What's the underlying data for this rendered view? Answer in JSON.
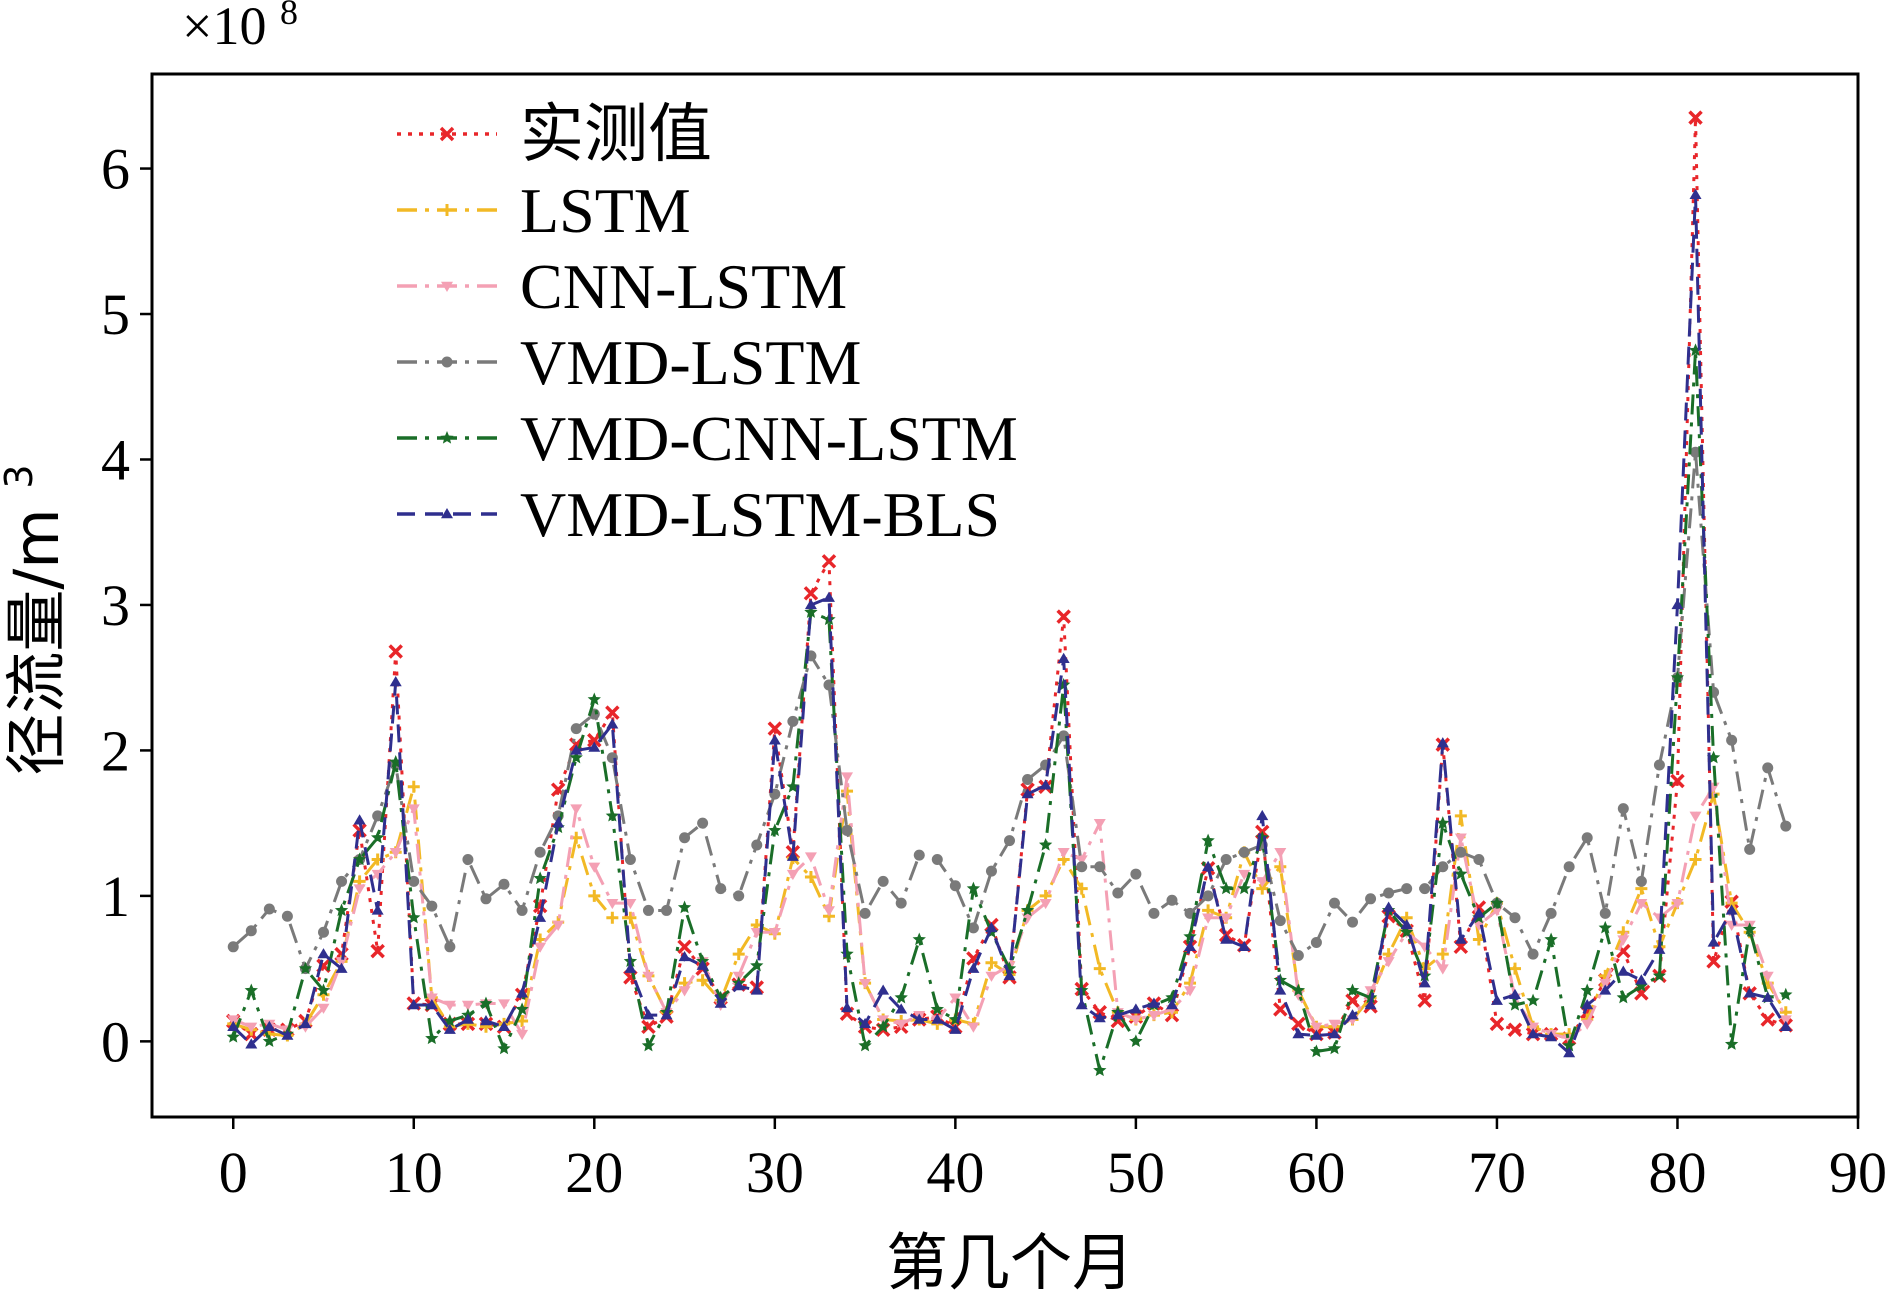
{
  "chart_data": {
    "type": "line",
    "xlabel": "第几个月",
    "ylabel_main": "径流量/m",
    "ylabel_sup": "3",
    "y_multiplier_base": "×10",
    "y_multiplier_exp": "8",
    "xlim": [
      -4.5,
      90
    ],
    "ylim": [
      -0.52,
      6.65
    ],
    "xticks": [
      0,
      10,
      20,
      30,
      40,
      50,
      60,
      70,
      80,
      90
    ],
    "xtick_labels": [
      "0",
      "10",
      "20",
      "30",
      "40",
      "50",
      "60",
      "70",
      "80",
      "90"
    ],
    "yticks": [
      0,
      1,
      2,
      3,
      4,
      5,
      6
    ],
    "ytick_labels": [
      "0",
      "1",
      "2",
      "3",
      "4",
      "5",
      "6"
    ],
    "grid": false,
    "legend_position": "top-left",
    "series": [
      {
        "name": "实测值",
        "color": "#e8262a",
        "dash": "4,7",
        "marker": "x",
        "values": [
          0.14,
          0.05,
          0.08,
          0.08,
          0.14,
          0.52,
          0.6,
          1.45,
          0.62,
          2.68,
          0.26,
          0.25,
          0.12,
          0.12,
          0.12,
          0.1,
          0.32,
          0.93,
          1.73,
          2.04,
          2.07,
          2.26,
          0.44,
          0.1,
          0.17,
          0.65,
          0.5,
          0.3,
          0.39,
          0.37,
          2.15,
          1.3,
          3.08,
          3.3,
          0.19,
          0.1,
          0.08,
          0.1,
          0.15,
          0.17,
          0.1,
          0.57,
          0.8,
          0.44,
          1.73,
          1.75,
          2.92,
          0.36,
          0.2,
          0.14,
          0.17,
          0.26,
          0.18,
          0.65,
          1.19,
          0.73,
          0.66,
          1.44,
          0.22,
          0.12,
          0.05,
          0.06,
          0.28,
          0.24,
          0.86,
          0.76,
          0.28,
          2.04,
          0.65,
          0.92,
          0.12,
          0.08,
          0.05,
          0.05,
          0.02,
          0.2,
          0.42,
          0.62,
          0.33,
          0.45,
          1.79,
          6.35,
          0.55,
          0.96,
          0.33,
          0.15,
          0.11
        ]
      },
      {
        "name": "LSTM",
        "color": "#f2b925",
        "dash": "20,8,4,8",
        "marker": "plus",
        "values": [
          0.12,
          0.08,
          0.05,
          0.04,
          0.12,
          0.32,
          0.55,
          1.1,
          1.25,
          1.3,
          1.75,
          0.3,
          0.1,
          0.12,
          0.1,
          0.12,
          0.14,
          0.7,
          0.82,
          1.4,
          1.0,
          0.85,
          0.85,
          0.45,
          0.2,
          0.4,
          0.42,
          0.28,
          0.6,
          0.8,
          0.74,
          1.26,
          1.13,
          0.86,
          1.72,
          0.4,
          0.15,
          0.14,
          0.15,
          0.12,
          0.15,
          0.12,
          0.54,
          0.46,
          0.9,
          1.0,
          1.25,
          1.05,
          0.5,
          0.2,
          0.15,
          0.18,
          0.2,
          0.4,
          0.9,
          0.85,
          1.3,
          1.05,
          1.2,
          0.35,
          0.1,
          0.1,
          0.15,
          0.3,
          0.6,
          0.85,
          0.5,
          0.6,
          1.55,
          0.7,
          0.95,
          0.5,
          0.1,
          0.05,
          0.05,
          0.15,
          0.45,
          0.75,
          1.05,
          0.65,
          0.95,
          1.25,
          1.7,
          0.95,
          0.75,
          0.4,
          0.2
        ]
      },
      {
        "name": "CNN-LSTM",
        "color": "#f4a0b4",
        "dash": "20,8,4,8",
        "marker": "tri-down",
        "values": [
          0.15,
          0.1,
          0.12,
          0.08,
          0.1,
          0.23,
          0.55,
          1.05,
          1.15,
          1.3,
          1.6,
          0.3,
          0.25,
          0.25,
          0.26,
          0.26,
          0.05,
          0.65,
          0.8,
          1.6,
          1.2,
          0.95,
          0.95,
          0.45,
          0.2,
          0.35,
          0.55,
          0.25,
          0.45,
          0.75,
          0.75,
          1.15,
          1.27,
          0.9,
          1.82,
          0.4,
          0.15,
          0.12,
          0.18,
          0.15,
          0.3,
          0.1,
          0.45,
          0.52,
          0.85,
          0.95,
          1.3,
          1.25,
          1.5,
          0.2,
          0.15,
          0.18,
          0.22,
          0.35,
          0.85,
          0.85,
          1.15,
          1.1,
          1.3,
          0.32,
          0.1,
          0.12,
          0.15,
          0.35,
          0.55,
          0.75,
          0.65,
          0.5,
          1.4,
          0.8,
          0.9,
          0.3,
          0.1,
          0.05,
          0.02,
          0.12,
          0.4,
          0.7,
          0.95,
          0.85,
          0.95,
          1.55,
          1.75,
          0.8,
          0.8,
          0.45,
          0.15
        ]
      },
      {
        "name": "VMD-LSTM",
        "color": "#7a7a7a",
        "dash": "20,8,4,8",
        "marker": "circle",
        "values": [
          0.65,
          0.76,
          0.91,
          0.86,
          0.5,
          0.75,
          1.1,
          1.25,
          1.55,
          1.9,
          1.1,
          0.93,
          0.65,
          1.25,
          0.98,
          1.08,
          0.9,
          1.3,
          1.55,
          2.15,
          2.25,
          1.95,
          1.25,
          0.9,
          0.9,
          1.4,
          1.5,
          1.05,
          1.0,
          1.35,
          1.7,
          2.2,
          2.65,
          2.45,
          1.45,
          0.88,
          1.1,
          0.95,
          1.28,
          1.25,
          1.07,
          0.78,
          1.17,
          1.38,
          1.8,
          1.9,
          2.1,
          1.2,
          1.2,
          1.02,
          1.15,
          0.88,
          0.97,
          0.88,
          1.0,
          1.25,
          1.3,
          1.35,
          0.83,
          0.59,
          0.68,
          0.95,
          0.82,
          0.98,
          1.02,
          1.05,
          1.05,
          1.2,
          1.3,
          1.25,
          0.95,
          0.85,
          0.6,
          0.88,
          1.2,
          1.4,
          0.88,
          1.6,
          1.1,
          1.9,
          2.5,
          4.05,
          2.4,
          2.07,
          1.32,
          1.88,
          1.48
        ]
      },
      {
        "name": "VMD-CNN-LSTM",
        "color": "#1a6e28",
        "dash": "20,8,4,8",
        "marker": "star",
        "values": [
          0.03,
          0.35,
          0.0,
          0.05,
          0.5,
          0.35,
          0.9,
          1.25,
          1.4,
          1.92,
          0.85,
          0.02,
          0.14,
          0.18,
          0.26,
          -0.05,
          0.22,
          1.12,
          1.47,
          1.95,
          2.35,
          1.55,
          0.55,
          -0.03,
          0.2,
          0.92,
          0.55,
          0.3,
          0.4,
          0.52,
          1.45,
          1.75,
          2.95,
          2.9,
          0.6,
          -0.03,
          0.1,
          0.3,
          0.7,
          0.22,
          0.15,
          1.05,
          0.75,
          0.5,
          0.9,
          1.35,
          2.45,
          0.35,
          -0.2,
          0.2,
          0.0,
          0.25,
          0.3,
          0.72,
          1.38,
          1.05,
          1.05,
          1.4,
          0.42,
          0.35,
          -0.07,
          -0.05,
          0.35,
          0.3,
          0.9,
          0.75,
          0.45,
          1.5,
          1.15,
          0.85,
          0.95,
          0.25,
          0.28,
          0.7,
          -0.03,
          0.35,
          0.78,
          0.3,
          0.38,
          0.45,
          2.5,
          4.75,
          1.95,
          -0.02,
          0.77,
          0.3,
          0.32
        ]
      },
      {
        "name": "VMD-LSTM-BLS",
        "color": "#2f2f8e",
        "dash": "18,10",
        "marker": "tri-up",
        "values": [
          0.1,
          -0.02,
          0.1,
          0.04,
          0.12,
          0.6,
          0.5,
          1.52,
          0.9,
          2.47,
          0.25,
          0.25,
          0.08,
          0.15,
          0.14,
          0.1,
          0.33,
          0.85,
          1.5,
          2.0,
          2.02,
          2.18,
          0.5,
          0.18,
          0.18,
          0.58,
          0.52,
          0.26,
          0.38,
          0.35,
          2.07,
          1.27,
          3.0,
          3.05,
          0.23,
          0.12,
          0.35,
          0.22,
          0.15,
          0.15,
          0.08,
          0.5,
          0.78,
          0.45,
          1.7,
          1.76,
          2.63,
          0.25,
          0.16,
          0.18,
          0.22,
          0.26,
          0.25,
          0.65,
          1.2,
          0.7,
          0.65,
          1.55,
          0.35,
          0.05,
          0.04,
          0.05,
          0.18,
          0.25,
          0.92,
          0.8,
          0.4,
          2.05,
          0.7,
          0.88,
          0.28,
          0.32,
          0.05,
          0.03,
          -0.08,
          0.25,
          0.35,
          0.48,
          0.42,
          0.63,
          3.0,
          5.82,
          0.68,
          0.9,
          0.33,
          0.3,
          0.1
        ]
      }
    ]
  }
}
